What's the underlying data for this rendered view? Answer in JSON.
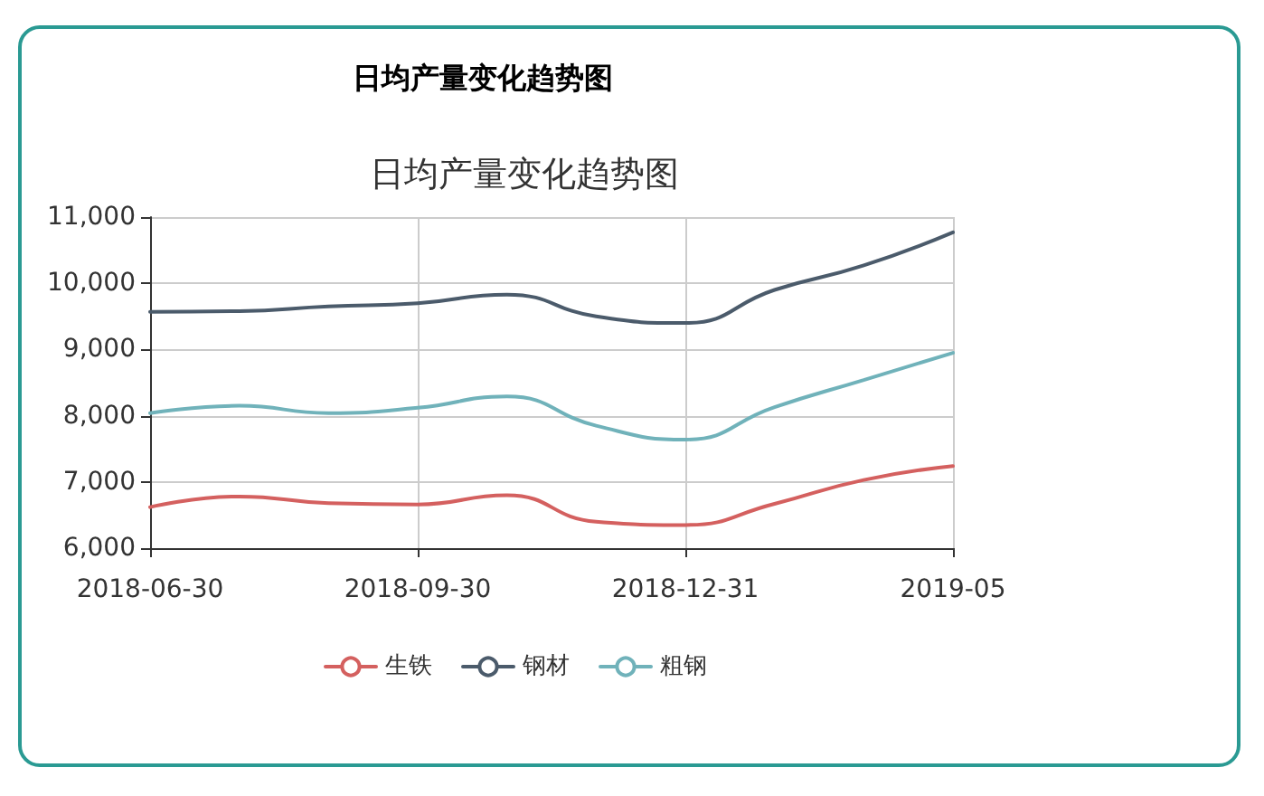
{
  "chart_data": {
    "type": "line",
    "title": "日均产量变化趋势图",
    "subtitle": "日均产量变化趋势图",
    "categories": [
      "2018-06-30",
      null,
      null,
      "2018-09-30",
      null,
      null,
      "2018-12-31",
      null,
      null,
      "2019-05"
    ],
    "series": [
      {
        "name": "生铁",
        "color": "#d4605f",
        "values": [
          6620,
          6780,
          6680,
          6660,
          6800,
          6400,
          6350,
          6670,
          7030,
          7240
        ]
      },
      {
        "name": "钢材",
        "color": "#4b5b6b",
        "values": [
          9570,
          9580,
          9650,
          9700,
          9830,
          9500,
          9400,
          9900,
          10270,
          10770
        ]
      },
      {
        "name": "粗钢",
        "color": "#70b2ba",
        "values": [
          8040,
          8150,
          8040,
          8120,
          8290,
          7850,
          7640,
          8130,
          8540,
          8950
        ]
      }
    ],
    "ylim": [
      6000,
      11000
    ],
    "yticks": [
      {
        "value": 6000,
        "label": "6,000"
      },
      {
        "value": 7000,
        "label": "7,000"
      },
      {
        "value": 8000,
        "label": "8,000"
      },
      {
        "value": 9000,
        "label": "9,000"
      },
      {
        "value": 10000,
        "label": "10,000"
      },
      {
        "value": 11000,
        "label": "11,000"
      }
    ],
    "grid": true,
    "legend": "bottom",
    "marker": "none"
  }
}
